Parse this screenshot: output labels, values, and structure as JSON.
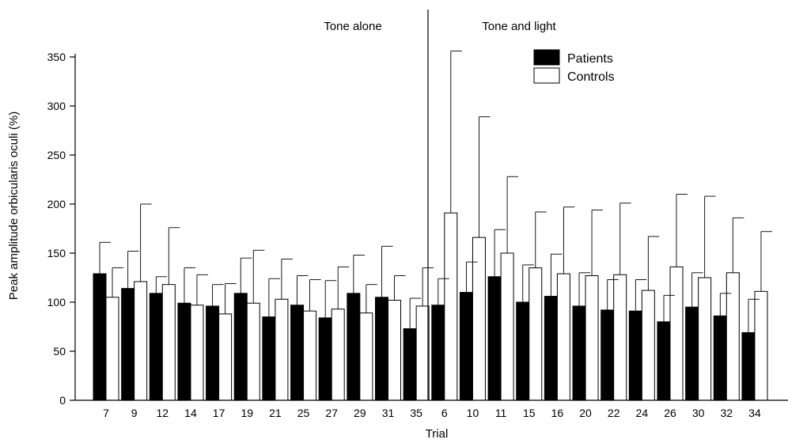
{
  "chart_data": {
    "type": "bar",
    "xlabel": "Trial",
    "ylabel": "Peak amplitude orbicularis oculi (%)",
    "ylim": [
      0,
      350
    ],
    "yticks": [
      0,
      50,
      100,
      150,
      200,
      250,
      300,
      350
    ],
    "grid": false,
    "legend_position": "top-right",
    "categories": [
      "7",
      "9",
      "12",
      "14",
      "17",
      "19",
      "21",
      "25",
      "27",
      "29",
      "31",
      "35",
      "6",
      "10",
      "11",
      "15",
      "16",
      "20",
      "22",
      "24",
      "26",
      "30",
      "32",
      "34"
    ],
    "sections": [
      {
        "label": "Tone alone",
        "start_index": 0,
        "end_index": 11
      },
      {
        "label": "Tone and light",
        "start_index": 12,
        "end_index": 23
      }
    ],
    "series": [
      {
        "name": "Patients",
        "color": "#000000",
        "values": [
          129,
          114,
          109,
          99,
          96,
          109,
          85,
          97,
          84,
          109,
          105,
          73,
          97,
          110,
          126,
          100,
          106,
          96,
          92,
          91,
          80,
          95,
          86,
          69
        ],
        "error_upper": [
          161,
          152,
          126,
          135,
          118,
          145,
          124,
          127,
          122,
          148,
          157,
          104,
          124,
          141,
          174,
          138,
          149,
          130,
          123,
          123,
          107,
          130,
          109,
          103
        ]
      },
      {
        "name": "Controls",
        "color": "#ffffff",
        "values": [
          105,
          121,
          118,
          97,
          88,
          99,
          103,
          91,
          93,
          89,
          102,
          96,
          191,
          166,
          150,
          135,
          129,
          127,
          128,
          112,
          136,
          125,
          130,
          111
        ],
        "error_upper": [
          135,
          200,
          176,
          128,
          119,
          153,
          144,
          123,
          136,
          118,
          127,
          135,
          356,
          289,
          228,
          192,
          197,
          194,
          201,
          167,
          210,
          208,
          186,
          172
        ]
      }
    ]
  }
}
